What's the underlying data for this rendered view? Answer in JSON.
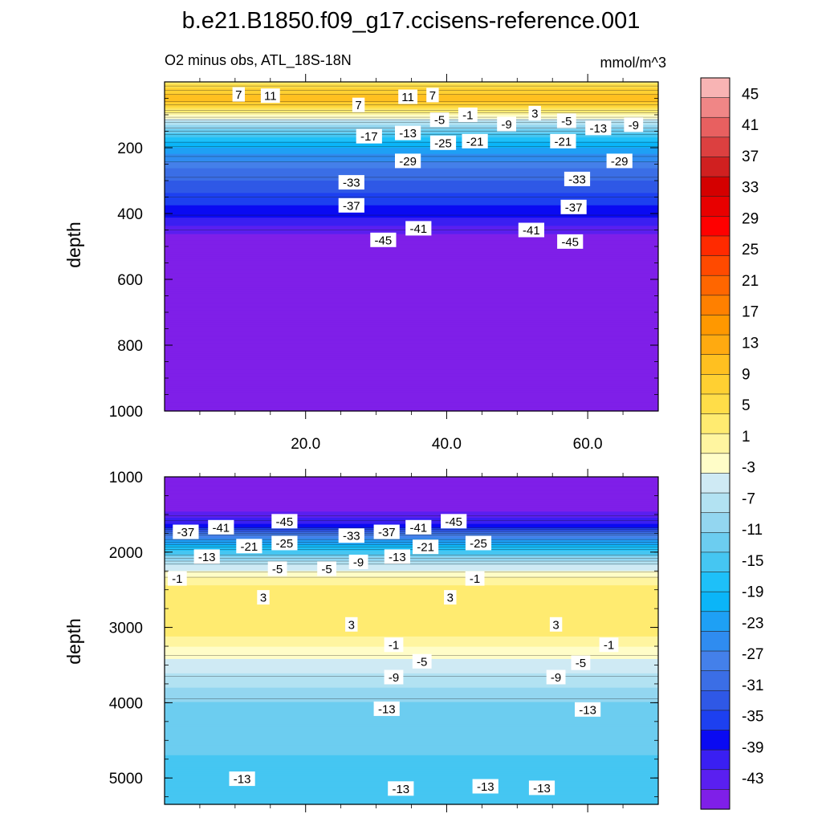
{
  "figure": {
    "title": "b.e21.B1850.f09_g17.ccisens-reference.001",
    "subtitle_left": "O2 minus obs, ATL_18S-18N",
    "units": "mmol/m^3"
  },
  "colors": {
    "palette_low_to_high": [
      "#7f1fe8",
      "#5a1ff0",
      "#3a1ff2",
      "#0a0af2",
      "#1d40f0",
      "#2f58e6",
      "#3b6ee6",
      "#4480ea",
      "#2f8cf0",
      "#1ea0f5",
      "#0bb5f8",
      "#1ec0f8",
      "#45c6f2",
      "#6ccdf0",
      "#93d6f0",
      "#b2e2f2",
      "#cfeaf4",
      "#fffdc8",
      "#fff5a0",
      "#ffeb70",
      "#ffdd48",
      "#ffd032",
      "#ffc020",
      "#ffaa10",
      "#ff9800",
      "#ff8000",
      "#ff6600",
      "#ff4a00",
      "#ff2a00",
      "#ff0000",
      "#e80000",
      "#d40000",
      "#d02020",
      "#dc4040",
      "#e86060",
      "#f08686",
      "#f8b4b4"
    ],
    "zero_band_outline": "#000000"
  },
  "chart_data": [
    {
      "type": "heatmap",
      "panel": "upper",
      "title": "",
      "xlabel": "",
      "ylabel": "depth",
      "xlim": [
        0,
        70
      ],
      "ylim": [
        1000,
        0
      ],
      "x_ticks": [
        20.0,
        40.0,
        60.0
      ],
      "x_tick_labels": [
        "20.0",
        "40.0",
        "60.0"
      ],
      "y_ticks": [
        200,
        400,
        600,
        800,
        1000
      ],
      "y_tick_labels": [
        "200",
        "400",
        "600",
        "800",
        "1000"
      ],
      "x_tick_labels_shown": true,
      "contour_interval": 2,
      "vertical_profile": [
        {
          "depth": 0,
          "value": 3
        },
        {
          "depth": 50,
          "value": 11
        },
        {
          "depth": 80,
          "value": 5
        },
        {
          "depth": 100,
          "value": -1
        },
        {
          "depth": 130,
          "value": -9
        },
        {
          "depth": 170,
          "value": -17
        },
        {
          "depth": 210,
          "value": -23
        },
        {
          "depth": 260,
          "value": -29
        },
        {
          "depth": 320,
          "value": -33
        },
        {
          "depth": 380,
          "value": -37
        },
        {
          "depth": 430,
          "value": -41
        },
        {
          "depth": 470,
          "value": -45
        },
        {
          "depth": 1000,
          "value": -45
        }
      ],
      "contour_labels": [
        {
          "x": 10.5,
          "depth": 38,
          "label": "7"
        },
        {
          "x": 15.0,
          "depth": 42,
          "label": "11"
        },
        {
          "x": 27.5,
          "depth": 70,
          "label": "7"
        },
        {
          "x": 34.5,
          "depth": 45,
          "label": "11"
        },
        {
          "x": 38.0,
          "depth": 40,
          "label": "7"
        },
        {
          "x": 43.0,
          "depth": 100,
          "label": "-1"
        },
        {
          "x": 39.0,
          "depth": 115,
          "label": "-5"
        },
        {
          "x": 52.5,
          "depth": 95,
          "label": "3"
        },
        {
          "x": 57.0,
          "depth": 118,
          "label": "-5"
        },
        {
          "x": 48.5,
          "depth": 128,
          "label": "-9"
        },
        {
          "x": 61.5,
          "depth": 140,
          "label": "-13"
        },
        {
          "x": 66.5,
          "depth": 130,
          "label": "-9"
        },
        {
          "x": 29.0,
          "depth": 165,
          "label": "-17"
        },
        {
          "x": 34.5,
          "depth": 155,
          "label": "-13"
        },
        {
          "x": 39.5,
          "depth": 185,
          "label": "-25"
        },
        {
          "x": 44.0,
          "depth": 180,
          "label": "-21"
        },
        {
          "x": 56.5,
          "depth": 180,
          "label": "-21"
        },
        {
          "x": 34.5,
          "depth": 240,
          "label": "-29"
        },
        {
          "x": 64.5,
          "depth": 240,
          "label": "-29"
        },
        {
          "x": 26.5,
          "depth": 305,
          "label": "-33"
        },
        {
          "x": 58.5,
          "depth": 295,
          "label": "-33"
        },
        {
          "x": 26.5,
          "depth": 375,
          "label": "-37"
        },
        {
          "x": 58.0,
          "depth": 380,
          "label": "-37"
        },
        {
          "x": 36.0,
          "depth": 445,
          "label": "-41"
        },
        {
          "x": 52.0,
          "depth": 450,
          "label": "-41"
        },
        {
          "x": 31.0,
          "depth": 480,
          "label": "-45"
        },
        {
          "x": 57.5,
          "depth": 485,
          "label": "-45"
        }
      ]
    },
    {
      "type": "heatmap",
      "panel": "lower",
      "title": "",
      "xlabel": "",
      "ylabel": "depth",
      "xlim": [
        0,
        70
      ],
      "ylim": [
        5350,
        1000
      ],
      "x_ticks": [
        20.0,
        40.0,
        60.0
      ],
      "x_tick_labels": [],
      "y_ticks": [
        1000,
        2000,
        3000,
        4000,
        5000
      ],
      "y_tick_labels": [
        "1000",
        "2000",
        "3000",
        "4000",
        "5000"
      ],
      "x_tick_labels_shown": false,
      "contour_interval": 2,
      "vertical_profile": [
        {
          "depth": 1000,
          "value": -45
        },
        {
          "depth": 1450,
          "value": -45
        },
        {
          "depth": 1650,
          "value": -39
        },
        {
          "depth": 1800,
          "value": -27
        },
        {
          "depth": 2000,
          "value": -15
        },
        {
          "depth": 2200,
          "value": -5
        },
        {
          "depth": 2400,
          "value": 1
        },
        {
          "depth": 2700,
          "value": 3
        },
        {
          "depth": 2950,
          "value": 3
        },
        {
          "depth": 3150,
          "value": 1
        },
        {
          "depth": 3250,
          "value": -1
        },
        {
          "depth": 3500,
          "value": -5
        },
        {
          "depth": 3800,
          "value": -9
        },
        {
          "depth": 4100,
          "value": -13
        },
        {
          "depth": 5350,
          "value": -15
        }
      ],
      "contour_labels": [
        {
          "x": 3.0,
          "depth": 1730,
          "label": "-37"
        },
        {
          "x": 8.0,
          "depth": 1670,
          "label": "-41"
        },
        {
          "x": 17.0,
          "depth": 1590,
          "label": "-45"
        },
        {
          "x": 26.5,
          "depth": 1780,
          "label": "-33"
        },
        {
          "x": 31.5,
          "depth": 1730,
          "label": "-37"
        },
        {
          "x": 36.0,
          "depth": 1670,
          "label": "-41"
        },
        {
          "x": 41.0,
          "depth": 1590,
          "label": "-45"
        },
        {
          "x": 6.0,
          "depth": 2060,
          "label": "-13"
        },
        {
          "x": 12.0,
          "depth": 1920,
          "label": "-21"
        },
        {
          "x": 17.0,
          "depth": 1880,
          "label": "-25"
        },
        {
          "x": 33.0,
          "depth": 2060,
          "label": "-13"
        },
        {
          "x": 37.0,
          "depth": 1930,
          "label": "-21"
        },
        {
          "x": 44.5,
          "depth": 1880,
          "label": "-25"
        },
        {
          "x": 1.8,
          "depth": 2350,
          "label": "-1"
        },
        {
          "x": 16.0,
          "depth": 2220,
          "label": "-5"
        },
        {
          "x": 23.0,
          "depth": 2220,
          "label": "-5"
        },
        {
          "x": 27.5,
          "depth": 2130,
          "label": "-9"
        },
        {
          "x": 44.0,
          "depth": 2350,
          "label": "-1"
        },
        {
          "x": 14.0,
          "depth": 2600,
          "label": "3"
        },
        {
          "x": 40.5,
          "depth": 2600,
          "label": "3"
        },
        {
          "x": 26.5,
          "depth": 2960,
          "label": "3"
        },
        {
          "x": 55.5,
          "depth": 2960,
          "label": "3"
        },
        {
          "x": 32.5,
          "depth": 3230,
          "label": "-1"
        },
        {
          "x": 63.0,
          "depth": 3230,
          "label": "-1"
        },
        {
          "x": 36.5,
          "depth": 3450,
          "label": "-5"
        },
        {
          "x": 59.0,
          "depth": 3470,
          "label": "-5"
        },
        {
          "x": 32.5,
          "depth": 3660,
          "label": "-9"
        },
        {
          "x": 55.5,
          "depth": 3660,
          "label": "-9"
        },
        {
          "x": 31.5,
          "depth": 4080,
          "label": "-13"
        },
        {
          "x": 60.0,
          "depth": 4090,
          "label": "-13"
        },
        {
          "x": 11.0,
          "depth": 5010,
          "label": "-13"
        },
        {
          "x": 33.5,
          "depth": 5140,
          "label": "-13"
        },
        {
          "x": 45.5,
          "depth": 5110,
          "label": "-13"
        },
        {
          "x": 53.5,
          "depth": 5130,
          "label": "-13"
        }
      ]
    },
    {
      "type": "colorbar",
      "range": [
        -47,
        47
      ],
      "tick_labels": [
        "45",
        "41",
        "37",
        "33",
        "29",
        "25",
        "21",
        "17",
        "13",
        "9",
        "5",
        "1",
        "-3",
        "-7",
        "-11",
        "-15",
        "-19",
        "-23",
        "-27",
        "-31",
        "-35",
        "-39",
        "-43"
      ]
    }
  ]
}
